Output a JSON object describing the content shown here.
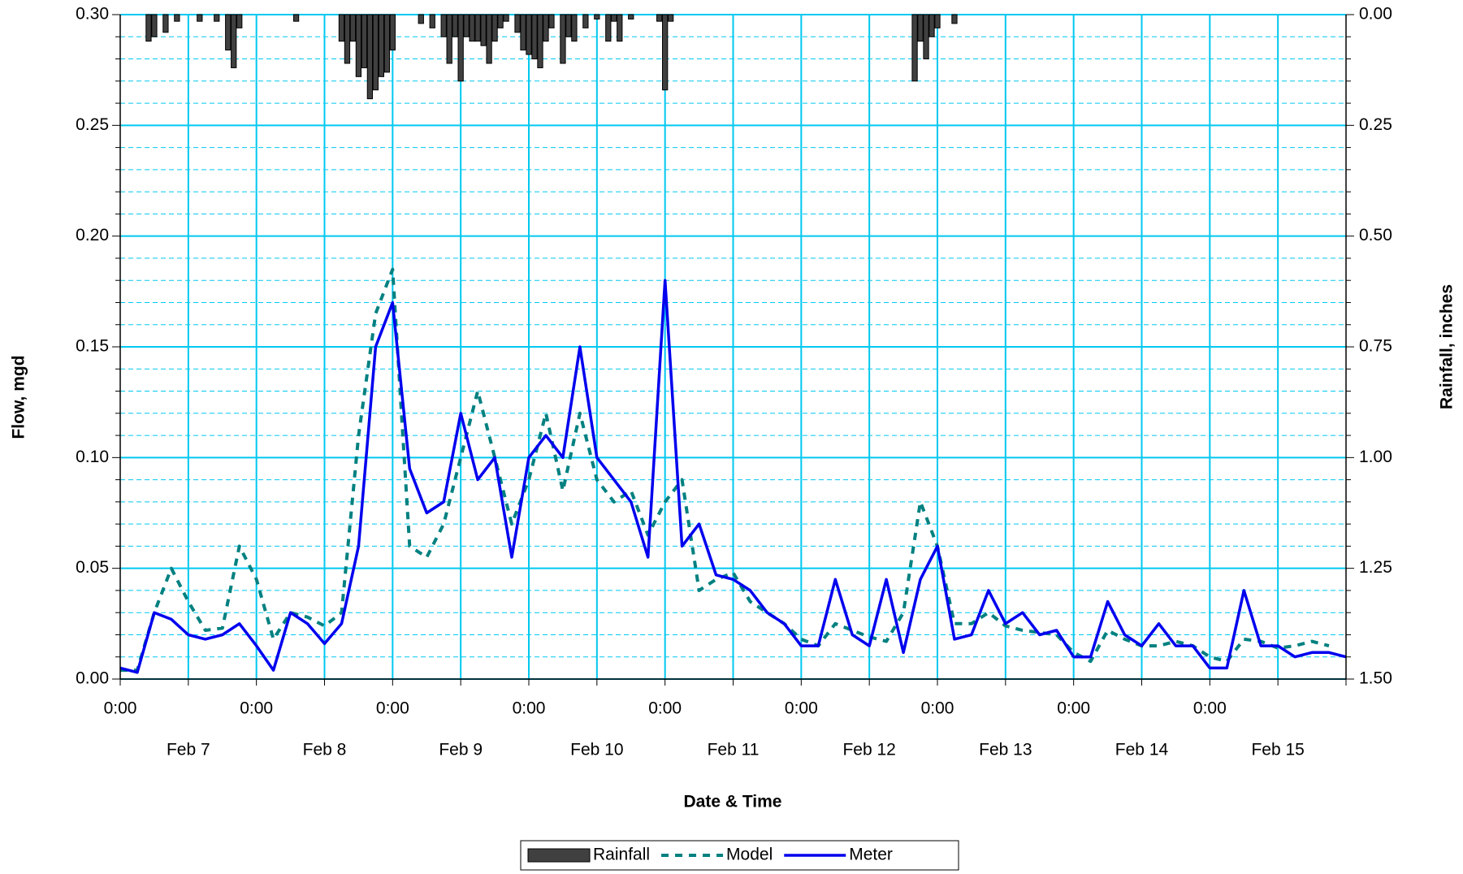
{
  "chart_data": {
    "type": "line",
    "y_label": "Flow, mgd",
    "y2_label": "Rainfall, inches",
    "x_label": "Date & Time",
    "xlim": [
      "Feb 7 0:00",
      "Feb 16 0:00"
    ],
    "xticks": [
      {
        "value": "Feb 7 0:00",
        "label": "0:00"
      },
      {
        "value": "Feb 8 0:00",
        "label": "0:00"
      },
      {
        "value": "Feb 9 0:00",
        "label": "0:00"
      },
      {
        "value": "Feb 10 0:00",
        "label": "0:00"
      },
      {
        "value": "Feb 11 0:00",
        "label": "0:00"
      },
      {
        "value": "Feb 12 0:00",
        "label": "0:00"
      },
      {
        "value": "Feb 13 0:00",
        "label": "0:00"
      },
      {
        "value": "Feb 14 0:00",
        "label": "0:00"
      },
      {
        "value": "Feb 15 0:00",
        "label": "0:00"
      }
    ],
    "xlabels_day": [
      {
        "value": "Feb 7 12:00",
        "label": "Feb 7"
      },
      {
        "value": "Feb 8 12:00",
        "label": "Feb 8"
      },
      {
        "value": "Feb 9 12:00",
        "label": "Feb 9"
      },
      {
        "value": "Feb 10 12:00",
        "label": "Feb 10"
      },
      {
        "value": "Feb 11 12:00",
        "label": "Feb 11"
      },
      {
        "value": "Feb 12 12:00",
        "label": "Feb 12"
      },
      {
        "value": "Feb 13 12:00",
        "label": "Feb 13"
      },
      {
        "value": "Feb 14 12:00",
        "label": "Feb 14"
      },
      {
        "value": "Feb 15 12:00",
        "label": "Feb 15"
      }
    ],
    "ylim": [
      0,
      0.3
    ],
    "yticks": [
      {
        "value": 0,
        "label": "0.00"
      },
      0.05,
      {
        "value": 0.1,
        "label": "0.10"
      },
      0.15,
      {
        "value": 0.2,
        "label": "0.20"
      },
      0.25,
      {
        "value": 0.3,
        "label": "0.30"
      }
    ],
    "minor_yticks": [
      0.01,
      0.02,
      0.03,
      0.04,
      0.06,
      0.07,
      0.08,
      0.09,
      0.11,
      0.12,
      0.13,
      0.14,
      0.16,
      0.17,
      0.18,
      0.19,
      0.21,
      0.22,
      0.23,
      0.24,
      0.26,
      0.27,
      0.28,
      0.29
    ],
    "y2lim": [
      1.5,
      0
    ],
    "y2ticks": [
      {
        "value": 0,
        "label": "0.00"
      },
      0.25,
      {
        "value": 0.5,
        "label": "0.50"
      },
      0.75,
      {
        "value": 1,
        "label": "1.00"
      },
      1.25,
      {
        "value": 1.5,
        "label": "1.50"
      }
    ],
    "grid": true,
    "x": [
      "Feb 7 0:00",
      "Feb 7 3:00",
      "Feb 7 6:00",
      "Feb 7 9:00",
      "Feb 7 12:00",
      "Feb 7 15:00",
      "Feb 7 18:00",
      "Feb 7 21:00",
      "Feb 8 0:00",
      "Feb 8 3:00",
      "Feb 8 6:00",
      "Feb 8 9:00",
      "Feb 8 12:00",
      "Feb 8 15:00",
      "Feb 8 18:00",
      "Feb 8 21:00",
      "Feb 9 0:00",
      "Feb 9 3:00",
      "Feb 9 6:00",
      "Feb 9 9:00",
      "Feb 9 12:00",
      "Feb 9 15:00",
      "Feb 9 18:00",
      "Feb 9 21:00",
      "Feb 10 0:00",
      "Feb 10 3:00",
      "Feb 10 6:00",
      "Feb 10 9:00",
      "Feb 10 12:00",
      "Feb 10 15:00",
      "Feb 10 18:00",
      "Feb 10 21:00",
      "Feb 11 0:00",
      "Feb 11 3:00",
      "Feb 11 6:00",
      "Feb 11 9:00",
      "Feb 11 12:00",
      "Feb 11 15:00",
      "Feb 11 18:00",
      "Feb 11 21:00",
      "Feb 12 0:00",
      "Feb 12 3:00",
      "Feb 12 6:00",
      "Feb 12 9:00",
      "Feb 12 12:00",
      "Feb 12 15:00",
      "Feb 12 18:00",
      "Feb 12 21:00",
      "Feb 13 0:00",
      "Feb 13 3:00",
      "Feb 13 6:00",
      "Feb 13 9:00",
      "Feb 13 12:00",
      "Feb 13 15:00",
      "Feb 13 18:00",
      "Feb 13 21:00",
      "Feb 14 0:00",
      "Feb 14 3:00",
      "Feb 14 6:00",
      "Feb 14 9:00",
      "Feb 14 12:00",
      "Feb 14 15:00",
      "Feb 14 18:00",
      "Feb 14 21:00",
      "Feb 15 0:00",
      "Feb 15 3:00",
      "Feb 15 6:00",
      "Feb 15 9:00",
      "Feb 15 12:00",
      "Feb 15 15:00",
      "Feb 15 18:00",
      "Feb 15 21:00",
      "Feb 16 0:00"
    ],
    "series": [
      {
        "name": "Rainfall",
        "type": "bar",
        "axis": "y2",
        "color": "#404040",
        "x": [
          "Feb 7 5:00",
          "Feb 7 6:00",
          "Feb 7 8:00",
          "Feb 7 10:00",
          "Feb 7 14:00",
          "Feb 7 17:00",
          "Feb 7 19:00",
          "Feb 7 20:00",
          "Feb 7 21:00",
          "Feb 8 7:00",
          "Feb 8 15:00",
          "Feb 8 16:00",
          "Feb 8 17:00",
          "Feb 8 18:00",
          "Feb 8 19:00",
          "Feb 8 20:00",
          "Feb 8 21:00",
          "Feb 8 22:00",
          "Feb 8 23:00",
          "Feb 9 0:00",
          "Feb 9 5:00",
          "Feb 9 7:00",
          "Feb 9 9:00",
          "Feb 9 10:00",
          "Feb 9 11:00",
          "Feb 9 12:00",
          "Feb 9 13:00",
          "Feb 9 14:00",
          "Feb 9 15:00",
          "Feb 9 16:00",
          "Feb 9 17:00",
          "Feb 9 18:00",
          "Feb 9 19:00",
          "Feb 9 20:00",
          "Feb 9 22:00",
          "Feb 9 23:00",
          "Feb 10 0:00",
          "Feb 10 1:00",
          "Feb 10 2:00",
          "Feb 10 3:00",
          "Feb 10 4:00",
          "Feb 10 6:00",
          "Feb 10 7:00",
          "Feb 10 8:00",
          "Feb 10 10:00",
          "Feb 10 12:00",
          "Feb 10 14:00",
          "Feb 10 15:00",
          "Feb 10 16:00",
          "Feb 10 18:00",
          "Feb 10 23:00",
          "Feb 11 0:00",
          "Feb 11 1:00",
          "Feb 12 20:00",
          "Feb 12 21:00",
          "Feb 12 22:00",
          "Feb 12 23:00",
          "Feb 13 0:00",
          "Feb 13 3:00"
        ],
        "values": [
          0.06,
          0.05,
          0.04,
          0.015,
          0.015,
          0.015,
          0.08,
          0.12,
          0.03,
          0.015,
          0.06,
          0.11,
          0.06,
          0.14,
          0.12,
          0.19,
          0.17,
          0.14,
          0.13,
          0.08,
          0.02,
          0.03,
          0.05,
          0.11,
          0.05,
          0.15,
          0.05,
          0.06,
          0.06,
          0.07,
          0.11,
          0.06,
          0.03,
          0.015,
          0.04,
          0.08,
          0.09,
          0.1,
          0.12,
          0.06,
          0.03,
          0.11,
          0.05,
          0.06,
          0.03,
          0.01,
          0.06,
          0.015,
          0.06,
          0.01,
          0.015,
          0.17,
          0.015,
          0.15,
          0.06,
          0.1,
          0.05,
          0.03,
          0.02
        ]
      },
      {
        "name": "Model",
        "type": "line",
        "color": "#008080",
        "dashed": true,
        "values": [
          0.004,
          0.004,
          0.03,
          0.05,
          0.035,
          0.022,
          0.023,
          0.06,
          0.045,
          0.018,
          0.03,
          0.028,
          0.024,
          0.03,
          0.11,
          0.165,
          0.185,
          0.06,
          0.055,
          0.07,
          0.1,
          0.13,
          0.1,
          0.07,
          0.09,
          0.12,
          0.085,
          0.12,
          0.09,
          0.08,
          0.085,
          0.065,
          0.08,
          0.09,
          0.04,
          0.045,
          0.048,
          0.035,
          0.03,
          0.025,
          0.018,
          0.015,
          0.025,
          0.022,
          0.019,
          0.017,
          0.03,
          0.08,
          0.06,
          0.025,
          0.025,
          0.03,
          0.024,
          0.022,
          0.021,
          0.02,
          0.012,
          0.008,
          0.022,
          0.018,
          0.015,
          0.015,
          0.017,
          0.015,
          0.01,
          0.008,
          0.018,
          0.017,
          0.014,
          0.015,
          0.017,
          0.015,
          null
        ]
      },
      {
        "name": "Meter",
        "type": "line",
        "color": "#0000ee",
        "dashed": false,
        "values": [
          0.005,
          0.003,
          0.03,
          0.027,
          0.02,
          0.018,
          0.02,
          0.025,
          0.015,
          0.004,
          0.03,
          0.025,
          0.016,
          0.025,
          0.06,
          0.15,
          0.17,
          0.095,
          0.075,
          0.08,
          0.12,
          0.09,
          0.1,
          0.055,
          0.1,
          0.11,
          0.1,
          0.15,
          0.1,
          0.09,
          0.08,
          0.055,
          0.18,
          0.06,
          0.07,
          0.047,
          0.045,
          0.04,
          0.03,
          0.025,
          0.015,
          0.015,
          0.045,
          0.02,
          0.015,
          0.045,
          0.012,
          0.045,
          0.06,
          0.018,
          0.02,
          0.04,
          0.025,
          0.03,
          0.02,
          0.022,
          0.01,
          0.01,
          0.035,
          0.02,
          0.015,
          0.025,
          0.015,
          0.015,
          0.005,
          0.005,
          0.04,
          0.015,
          0.015,
          0.01,
          0.012,
          0.012,
          0.01
        ]
      }
    ]
  }
}
